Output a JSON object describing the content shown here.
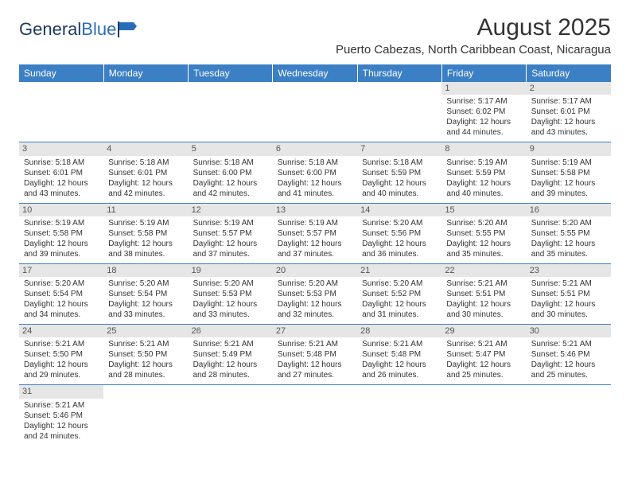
{
  "logo": {
    "text1": "General",
    "text2": "Blue"
  },
  "title": "August 2025",
  "location": "Puerto Cabezas, North Caribbean Coast, Nicaragua",
  "colors": {
    "header_bg": "#3b7fc4",
    "header_text": "#ffffff",
    "daynum_bg": "#e6e6e6",
    "daynum_text": "#555555",
    "border": "#3b7fc4",
    "body_text": "#333333"
  },
  "day_headers": [
    "Sunday",
    "Monday",
    "Tuesday",
    "Wednesday",
    "Thursday",
    "Friday",
    "Saturday"
  ],
  "weeks": [
    [
      {
        "empty": true
      },
      {
        "empty": true
      },
      {
        "empty": true
      },
      {
        "empty": true
      },
      {
        "empty": true
      },
      {
        "n": "1",
        "sunrise": "Sunrise: 5:17 AM",
        "sunset": "Sunset: 6:02 PM",
        "day1": "Daylight: 12 hours",
        "day2": "and 44 minutes."
      },
      {
        "n": "2",
        "sunrise": "Sunrise: 5:17 AM",
        "sunset": "Sunset: 6:01 PM",
        "day1": "Daylight: 12 hours",
        "day2": "and 43 minutes."
      }
    ],
    [
      {
        "n": "3",
        "sunrise": "Sunrise: 5:18 AM",
        "sunset": "Sunset: 6:01 PM",
        "day1": "Daylight: 12 hours",
        "day2": "and 43 minutes."
      },
      {
        "n": "4",
        "sunrise": "Sunrise: 5:18 AM",
        "sunset": "Sunset: 6:01 PM",
        "day1": "Daylight: 12 hours",
        "day2": "and 42 minutes."
      },
      {
        "n": "5",
        "sunrise": "Sunrise: 5:18 AM",
        "sunset": "Sunset: 6:00 PM",
        "day1": "Daylight: 12 hours",
        "day2": "and 42 minutes."
      },
      {
        "n": "6",
        "sunrise": "Sunrise: 5:18 AM",
        "sunset": "Sunset: 6:00 PM",
        "day1": "Daylight: 12 hours",
        "day2": "and 41 minutes."
      },
      {
        "n": "7",
        "sunrise": "Sunrise: 5:18 AM",
        "sunset": "Sunset: 5:59 PM",
        "day1": "Daylight: 12 hours",
        "day2": "and 40 minutes."
      },
      {
        "n": "8",
        "sunrise": "Sunrise: 5:19 AM",
        "sunset": "Sunset: 5:59 PM",
        "day1": "Daylight: 12 hours",
        "day2": "and 40 minutes."
      },
      {
        "n": "9",
        "sunrise": "Sunrise: 5:19 AM",
        "sunset": "Sunset: 5:58 PM",
        "day1": "Daylight: 12 hours",
        "day2": "and 39 minutes."
      }
    ],
    [
      {
        "n": "10",
        "sunrise": "Sunrise: 5:19 AM",
        "sunset": "Sunset: 5:58 PM",
        "day1": "Daylight: 12 hours",
        "day2": "and 39 minutes."
      },
      {
        "n": "11",
        "sunrise": "Sunrise: 5:19 AM",
        "sunset": "Sunset: 5:58 PM",
        "day1": "Daylight: 12 hours",
        "day2": "and 38 minutes."
      },
      {
        "n": "12",
        "sunrise": "Sunrise: 5:19 AM",
        "sunset": "Sunset: 5:57 PM",
        "day1": "Daylight: 12 hours",
        "day2": "and 37 minutes."
      },
      {
        "n": "13",
        "sunrise": "Sunrise: 5:19 AM",
        "sunset": "Sunset: 5:57 PM",
        "day1": "Daylight: 12 hours",
        "day2": "and 37 minutes."
      },
      {
        "n": "14",
        "sunrise": "Sunrise: 5:20 AM",
        "sunset": "Sunset: 5:56 PM",
        "day1": "Daylight: 12 hours",
        "day2": "and 36 minutes."
      },
      {
        "n": "15",
        "sunrise": "Sunrise: 5:20 AM",
        "sunset": "Sunset: 5:55 PM",
        "day1": "Daylight: 12 hours",
        "day2": "and 35 minutes."
      },
      {
        "n": "16",
        "sunrise": "Sunrise: 5:20 AM",
        "sunset": "Sunset: 5:55 PM",
        "day1": "Daylight: 12 hours",
        "day2": "and 35 minutes."
      }
    ],
    [
      {
        "n": "17",
        "sunrise": "Sunrise: 5:20 AM",
        "sunset": "Sunset: 5:54 PM",
        "day1": "Daylight: 12 hours",
        "day2": "and 34 minutes."
      },
      {
        "n": "18",
        "sunrise": "Sunrise: 5:20 AM",
        "sunset": "Sunset: 5:54 PM",
        "day1": "Daylight: 12 hours",
        "day2": "and 33 minutes."
      },
      {
        "n": "19",
        "sunrise": "Sunrise: 5:20 AM",
        "sunset": "Sunset: 5:53 PM",
        "day1": "Daylight: 12 hours",
        "day2": "and 33 minutes."
      },
      {
        "n": "20",
        "sunrise": "Sunrise: 5:20 AM",
        "sunset": "Sunset: 5:53 PM",
        "day1": "Daylight: 12 hours",
        "day2": "and 32 minutes."
      },
      {
        "n": "21",
        "sunrise": "Sunrise: 5:20 AM",
        "sunset": "Sunset: 5:52 PM",
        "day1": "Daylight: 12 hours",
        "day2": "and 31 minutes."
      },
      {
        "n": "22",
        "sunrise": "Sunrise: 5:21 AM",
        "sunset": "Sunset: 5:51 PM",
        "day1": "Daylight: 12 hours",
        "day2": "and 30 minutes."
      },
      {
        "n": "23",
        "sunrise": "Sunrise: 5:21 AM",
        "sunset": "Sunset: 5:51 PM",
        "day1": "Daylight: 12 hours",
        "day2": "and 30 minutes."
      }
    ],
    [
      {
        "n": "24",
        "sunrise": "Sunrise: 5:21 AM",
        "sunset": "Sunset: 5:50 PM",
        "day1": "Daylight: 12 hours",
        "day2": "and 29 minutes."
      },
      {
        "n": "25",
        "sunrise": "Sunrise: 5:21 AM",
        "sunset": "Sunset: 5:50 PM",
        "day1": "Daylight: 12 hours",
        "day2": "and 28 minutes."
      },
      {
        "n": "26",
        "sunrise": "Sunrise: 5:21 AM",
        "sunset": "Sunset: 5:49 PM",
        "day1": "Daylight: 12 hours",
        "day2": "and 28 minutes."
      },
      {
        "n": "27",
        "sunrise": "Sunrise: 5:21 AM",
        "sunset": "Sunset: 5:48 PM",
        "day1": "Daylight: 12 hours",
        "day2": "and 27 minutes."
      },
      {
        "n": "28",
        "sunrise": "Sunrise: 5:21 AM",
        "sunset": "Sunset: 5:48 PM",
        "day1": "Daylight: 12 hours",
        "day2": "and 26 minutes."
      },
      {
        "n": "29",
        "sunrise": "Sunrise: 5:21 AM",
        "sunset": "Sunset: 5:47 PM",
        "day1": "Daylight: 12 hours",
        "day2": "and 25 minutes."
      },
      {
        "n": "30",
        "sunrise": "Sunrise: 5:21 AM",
        "sunset": "Sunset: 5:46 PM",
        "day1": "Daylight: 12 hours",
        "day2": "and 25 minutes."
      }
    ],
    [
      {
        "n": "31",
        "sunrise": "Sunrise: 5:21 AM",
        "sunset": "Sunset: 5:46 PM",
        "day1": "Daylight: 12 hours",
        "day2": "and 24 minutes."
      },
      {
        "empty": true
      },
      {
        "empty": true
      },
      {
        "empty": true
      },
      {
        "empty": true
      },
      {
        "empty": true
      },
      {
        "empty": true
      }
    ]
  ]
}
